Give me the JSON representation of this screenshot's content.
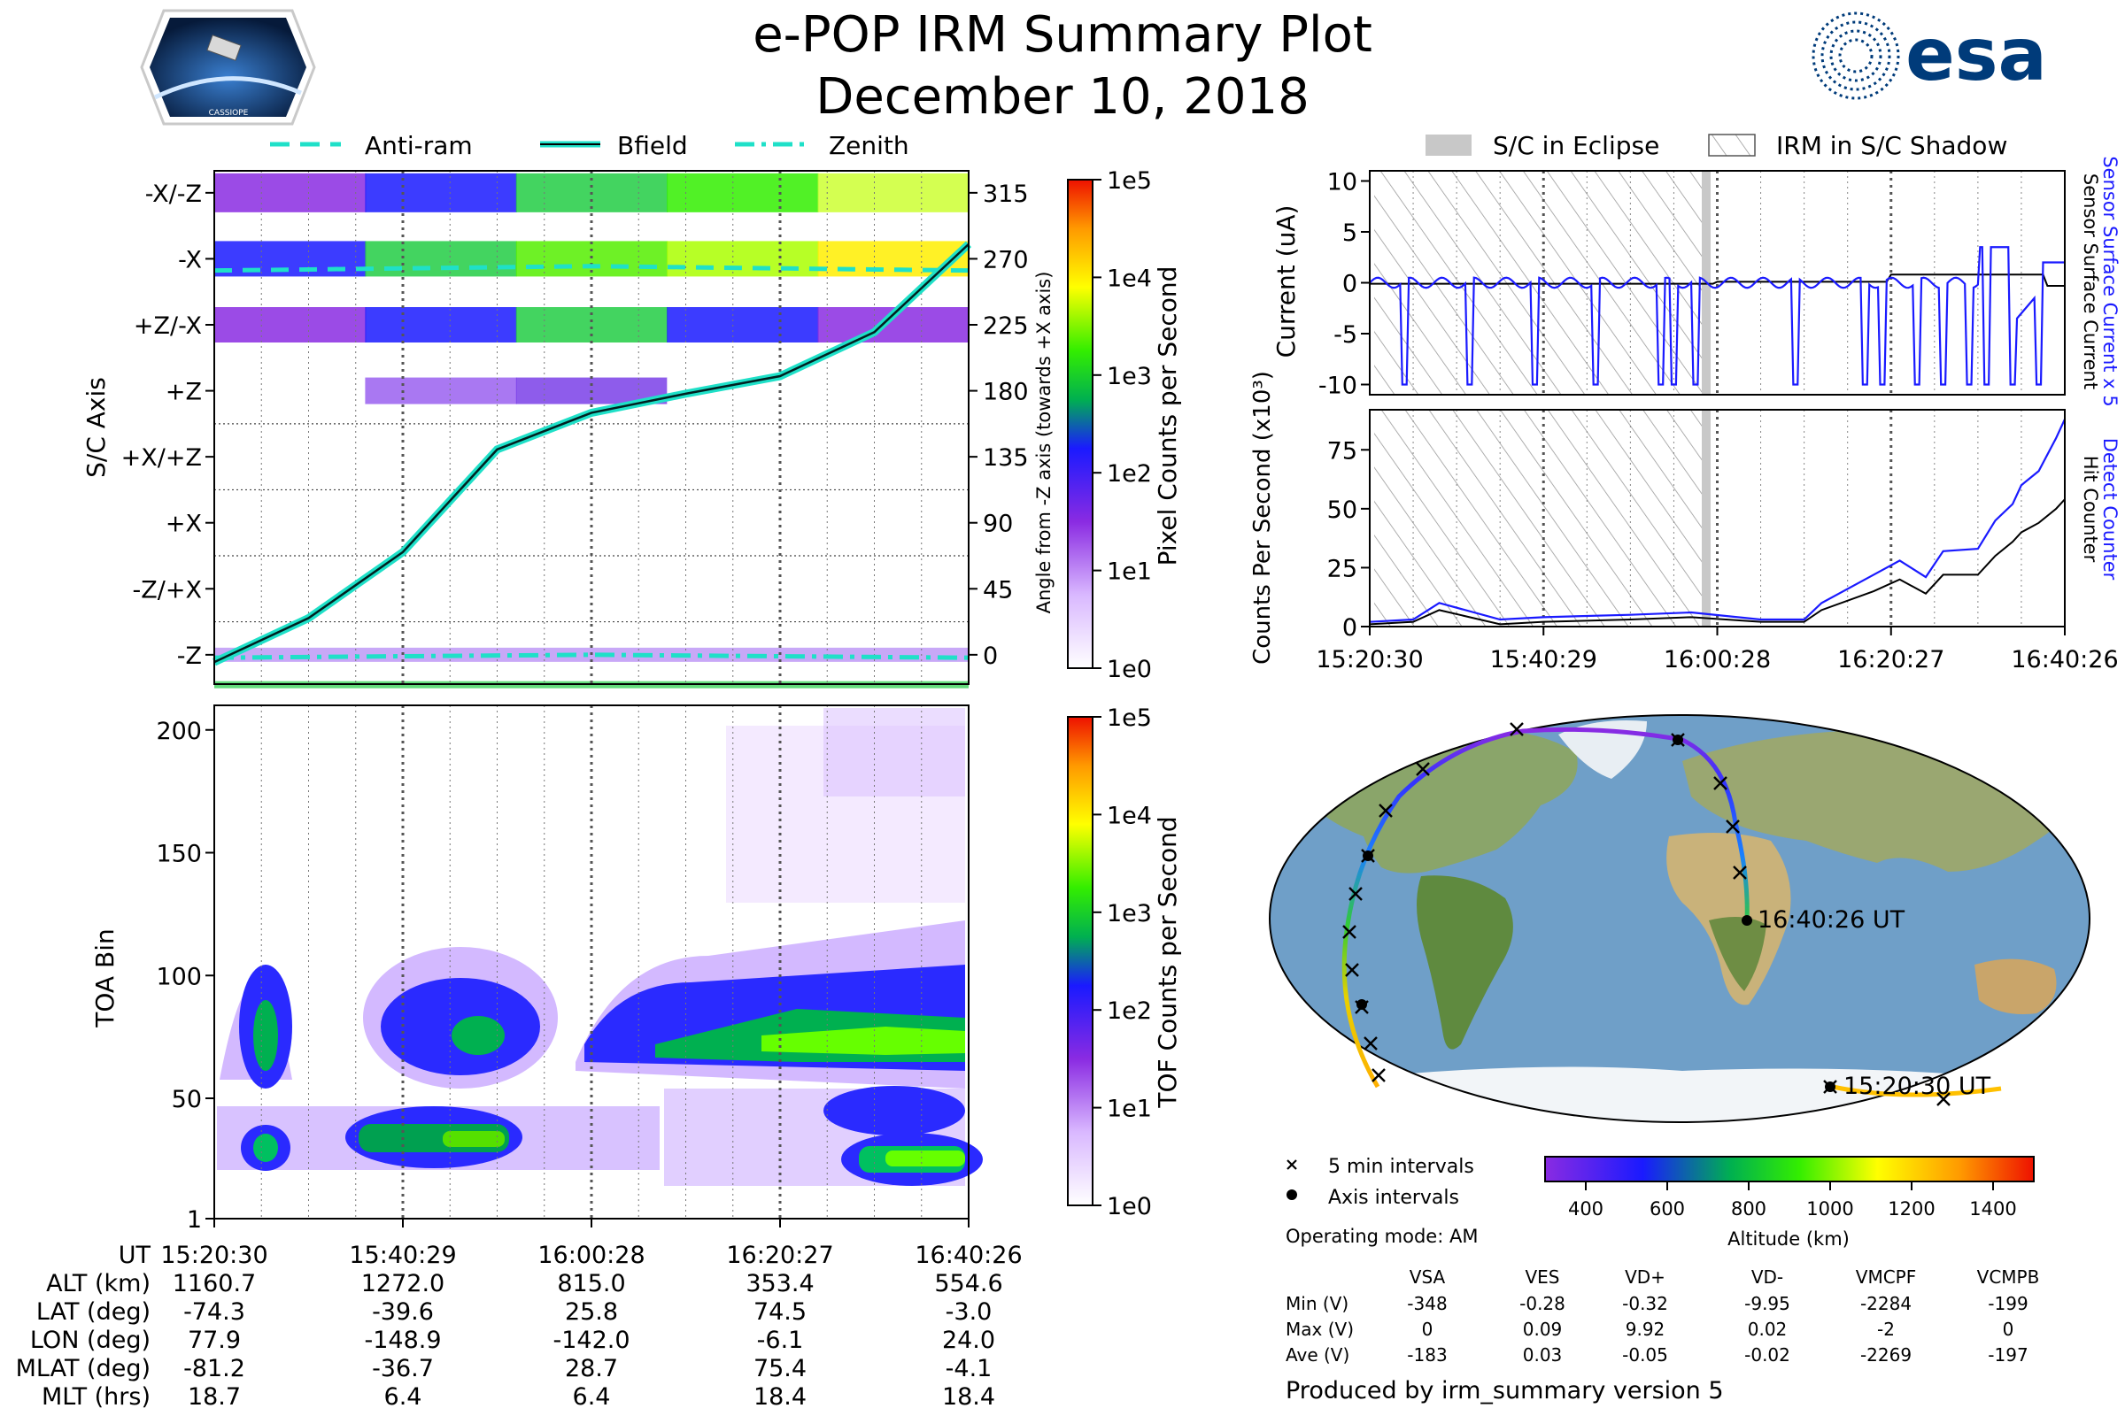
{
  "title": "e-POP IRM Summary Plot",
  "subtitle": "December 10, 2018",
  "logos": {
    "left": "CASSIOPE",
    "right": "esa"
  },
  "colors": {
    "cyan": "#1fe0c8",
    "blue": "#1a1aff",
    "esa_blue": "#003b7a",
    "eclipse_gray": "#c8c8c8"
  },
  "top_legend": [
    "Anti-ram",
    "Bfield",
    "Zenith"
  ],
  "right_legend": [
    "S/C in Eclipse",
    "IRM in S/C Shadow"
  ],
  "chart_data": [
    {
      "type": "heatmap",
      "name": "pixel-counts",
      "ylabel": "S/C Axis",
      "y_categories": [
        "-X/-Z",
        "-X",
        "+Z/-X",
        "+Z",
        "+X/+Z",
        "+X",
        "-Z/+X",
        "-Z"
      ],
      "right_axis_label": "Angle from -Z axis (towards +X axis)",
      "right_axis_ticks": [
        315,
        270,
        225,
        180,
        135,
        90,
        45,
        0
      ],
      "right_ylim": [
        -20,
        330
      ],
      "colorbar_label": "Pixel Counts per Second",
      "colorbar_ticks": [
        "1e5",
        "1e4",
        "1e3",
        "1e2",
        "1e1",
        "1e0"
      ],
      "lines": [
        {
          "name": "Bfield",
          "style": "solid",
          "x_min": [
            0,
            10,
            20,
            30,
            40,
            50,
            60,
            70,
            80
          ],
          "y_deg": [
            -5,
            25,
            70,
            140,
            165,
            178,
            190,
            220,
            280
          ]
        },
        {
          "name": "Anti-ram",
          "style": "dashed",
          "x_min": [
            0,
            40,
            80
          ],
          "y_deg": [
            262,
            265,
            262
          ]
        },
        {
          "name": "Zenith",
          "style": "dashdot",
          "x_min": [
            0,
            40,
            80
          ],
          "y_deg": [
            -2,
            0,
            -2
          ]
        }
      ]
    },
    {
      "type": "heatmap",
      "name": "tof-counts",
      "ylabel": "TOA Bin",
      "yticks": [
        1,
        50,
        100,
        150,
        200
      ],
      "ylim": [
        1,
        210
      ],
      "colorbar_label": "TOF Counts per Second",
      "colorbar_ticks": [
        "1e5",
        "1e4",
        "1e3",
        "1e2",
        "1e1",
        "1e0"
      ]
    },
    {
      "type": "line",
      "name": "current",
      "ylabel": "Current (uA)",
      "yticks": [
        10,
        5,
        0,
        -5,
        -10
      ],
      "ylim": [
        -11,
        11
      ],
      "right_label_primary": "Sensor Surface Current x 5",
      "right_label_secondary": "Sensor Surface Current",
      "series": [
        {
          "name": "Sensor Surface Current x 5",
          "color": "#1a1aff"
        },
        {
          "name": "Sensor Surface Current",
          "color": "#000000"
        }
      ]
    },
    {
      "type": "line",
      "name": "counts",
      "ylabel": "Counts Per Second (x10³)",
      "yticks": [
        75,
        50,
        25,
        0
      ],
      "ylim": [
        0,
        92
      ],
      "xtick_labels": [
        "15:20:30",
        "15:40:29",
        "16:00:28",
        "16:20:27",
        "16:40:26"
      ],
      "right_label_primary": "Detect Counter",
      "right_label_secondary": "Hit Counter",
      "series": [
        {
          "name": "Detect Counter",
          "color": "#1a1aff",
          "x_min": [
            0,
            5,
            8,
            15,
            20,
            30,
            37,
            45,
            50,
            52,
            58,
            61,
            64,
            66,
            70,
            72,
            74,
            75,
            77,
            79,
            80
          ],
          "y": [
            2,
            3,
            10,
            3,
            4,
            5,
            6,
            3,
            3,
            10,
            22,
            28,
            21,
            32,
            33,
            45,
            52,
            60,
            66,
            80,
            88
          ]
        },
        {
          "name": "Hit Counter",
          "color": "#000000",
          "x_min": [
            0,
            5,
            8,
            15,
            20,
            30,
            37,
            45,
            50,
            52,
            58,
            61,
            64,
            66,
            70,
            72,
            74,
            75,
            77,
            79,
            80
          ],
          "y": [
            1,
            2,
            7,
            1,
            2,
            3,
            4,
            2,
            2,
            7,
            15,
            20,
            14,
            22,
            22,
            30,
            36,
            40,
            44,
            50,
            54
          ]
        }
      ]
    }
  ],
  "ut_table": {
    "labels": [
      "UT",
      "ALT (km)",
      "LAT (deg)",
      "LON (deg)",
      "MLAT (deg)",
      "MLT (hrs)"
    ],
    "times": [
      "15:20:30",
      "15:40:29",
      "16:00:28",
      "16:20:27",
      "16:40:26"
    ],
    "rows": [
      [
        "1160.7",
        "1272.0",
        "815.0",
        "353.4",
        "554.6"
      ],
      [
        "-74.3",
        "-39.6",
        "25.8",
        "74.5",
        "-3.0"
      ],
      [
        "77.9",
        "-148.9",
        "-142.0",
        "-6.1",
        "24.0"
      ],
      [
        "-81.2",
        "-36.7",
        "28.7",
        "75.4",
        "-4.1"
      ],
      [
        "18.7",
        "6.4",
        "6.4",
        "18.4",
        "18.4"
      ]
    ]
  },
  "map": {
    "end_label": "16:40:26 UT",
    "start_label": "15:20:30 UT",
    "legend_5min": "5 min intervals",
    "legend_axis": "Axis intervals",
    "operating_mode": "Operating mode: AM",
    "altitude_label": "Altitude (km)",
    "altitude_ticks": [
      400,
      600,
      800,
      1000,
      1200,
      1400
    ]
  },
  "voltage_table": {
    "headers": [
      "VSA",
      "VES",
      "VD+",
      "VD-",
      "VMCPF",
      "VCMPB"
    ],
    "rows": [
      {
        "label": "Min (V)",
        "values": [
          "-348",
          "-0.28",
          "-0.32",
          "-9.95",
          "-2284",
          "-199"
        ]
      },
      {
        "label": "Max (V)",
        "values": [
          "0",
          "0.09",
          "9.92",
          "0.02",
          "-2",
          "0"
        ]
      },
      {
        "label": "Ave (V)",
        "values": [
          "-183",
          "0.03",
          "-0.05",
          "-0.02",
          "-2269",
          "-197"
        ]
      }
    ]
  },
  "footer": "Produced by irm_summary version 5"
}
